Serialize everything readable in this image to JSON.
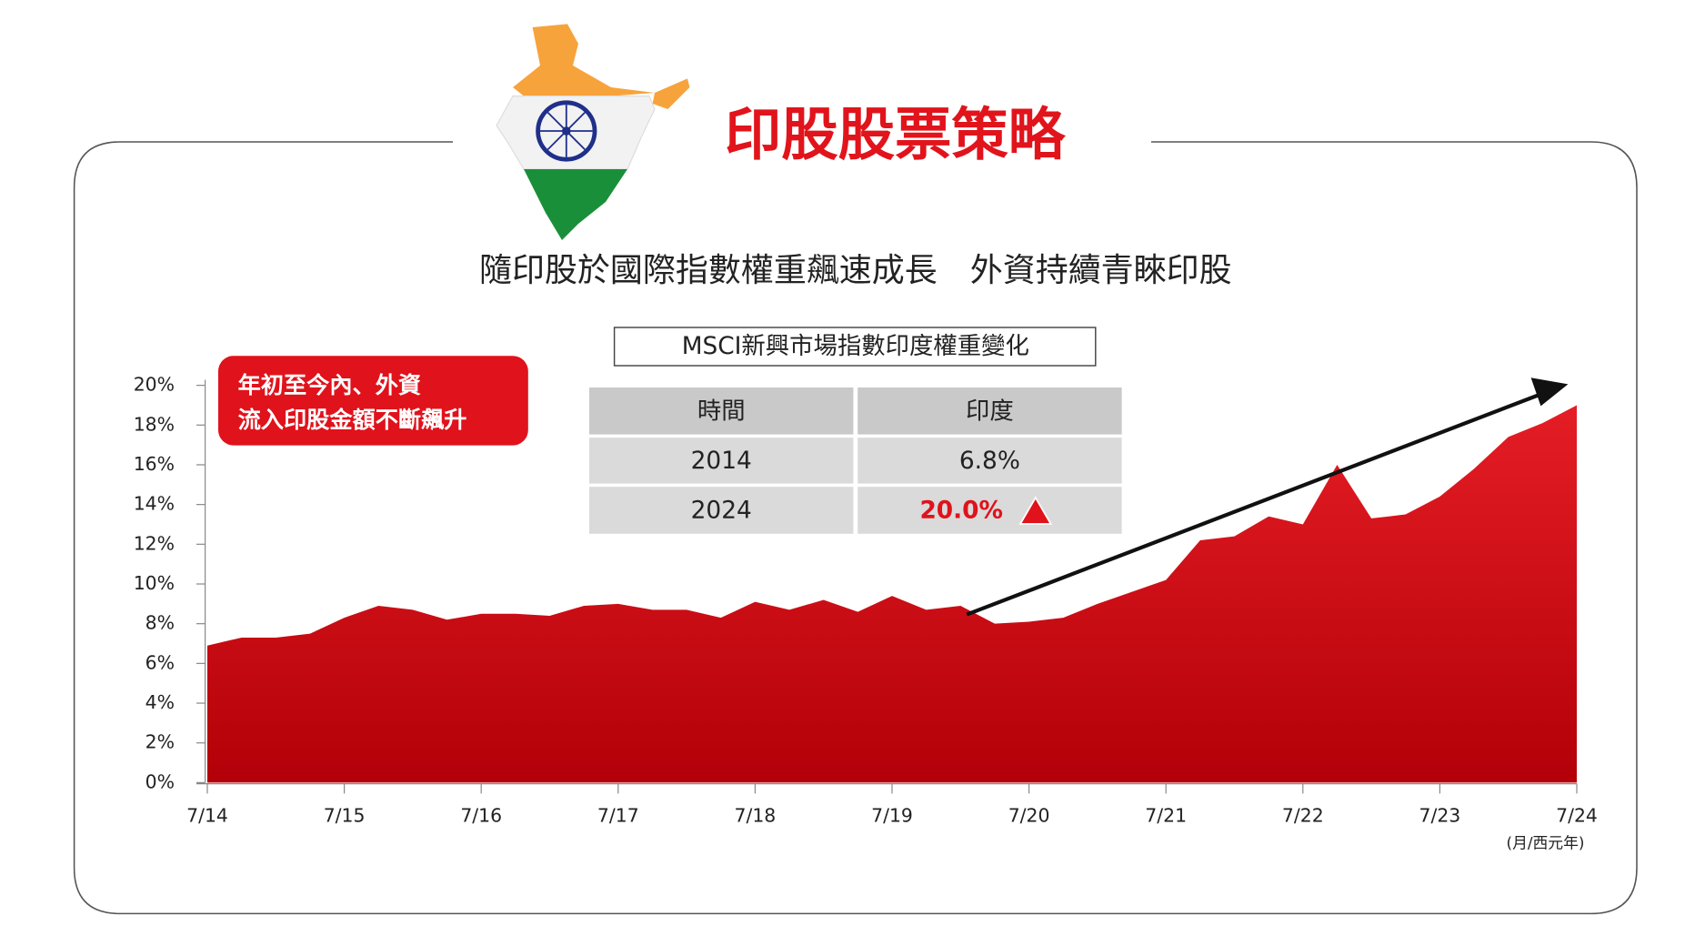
{
  "header": {
    "title": "印股股票策略",
    "subtitle": "隨印股於國際指數權重飆速成長　外資持續青睞印股"
  },
  "callout": {
    "lines": [
      "年初至今內、外資",
      "流入印股金額不斷飆升"
    ]
  },
  "table": {
    "title": "MSCI新興市場指數印度權重變化",
    "header": [
      "時間",
      "印度"
    ],
    "rows": [
      [
        "2014",
        "6.8%"
      ],
      [
        "2024",
        "20.0%"
      ]
    ]
  },
  "chart_data": {
    "type": "area",
    "color": "#d7141b",
    "categories": [
      "7/14",
      null,
      null,
      null,
      "7/15",
      null,
      null,
      null,
      "7/16",
      null,
      null,
      null,
      "7/17",
      null,
      null,
      null,
      "7/18",
      null,
      null,
      null,
      "7/19",
      null,
      null,
      null,
      "7/20",
      null,
      null,
      null,
      "7/21",
      null,
      null,
      null,
      "7/22",
      null,
      null,
      null,
      "7/23",
      null,
      null,
      null,
      "7/24"
    ],
    "values": [
      6.9,
      7.3,
      7.3,
      7.5,
      8.3,
      8.9,
      8.7,
      8.2,
      8.5,
      8.5,
      8.4,
      8.9,
      9.0,
      8.7,
      8.7,
      8.3,
      9.1,
      8.7,
      9.2,
      8.6,
      9.4,
      8.7,
      8.9,
      8.0,
      8.1,
      8.3,
      9.0,
      9.6,
      10.2,
      12.2,
      12.4,
      13.4,
      13.0,
      16.0,
      13.3,
      13.5,
      14.4,
      15.8,
      17.4,
      18.1,
      19.0
    ],
    "ylim": [
      0,
      20
    ],
    "yticks": [
      {
        "value": 0,
        "label": "0%"
      },
      {
        "value": 2,
        "label": "2%"
      },
      {
        "value": 4,
        "label": "4%"
      },
      {
        "value": 6,
        "label": "6%"
      },
      {
        "value": 8,
        "label": "8%"
      },
      {
        "value": 10,
        "label": "10%"
      },
      {
        "value": 12,
        "label": "12%"
      },
      {
        "value": 14,
        "label": "14%"
      },
      {
        "value": 16,
        "label": "16%"
      },
      {
        "value": 18,
        "label": "18%"
      },
      {
        "value": 20,
        "label": "20%"
      }
    ],
    "xlabel": "(月/西元年)"
  }
}
